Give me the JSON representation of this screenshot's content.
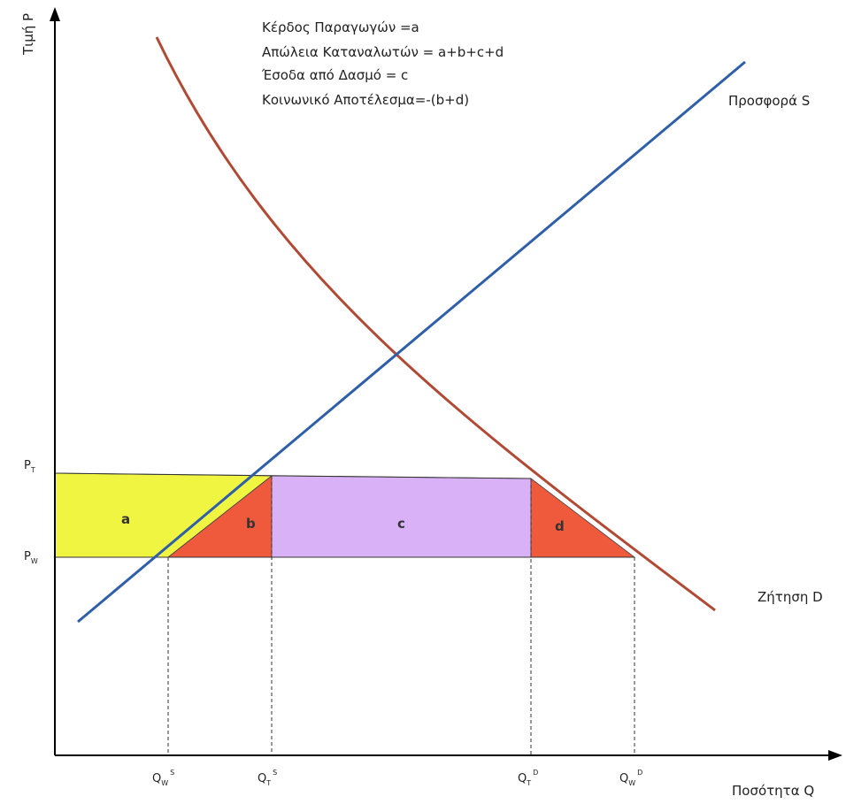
{
  "annotations": [
    "Κέρδος Παραγωγών =a",
    "Απώλεια Καταναλωτών = a+b+c+d",
    "Έσοδα από Δασμό = c",
    "Κοινωνικό Αποτέλεσμα=-(b+d)"
  ],
  "axes": {
    "y_label": "Τιμή P",
    "x_label": "Ποσότητα Q"
  },
  "curves": {
    "supply_label": "Προσφορά S",
    "demand_label": "Ζήτηση D",
    "supply_color": "#2f5fa8",
    "demand_color": "#b14a35"
  },
  "price_ticks": {
    "pt": {
      "main": "P",
      "sub": "T"
    },
    "pw": {
      "main": "P",
      "sub": "W"
    }
  },
  "quantity_ticks": {
    "qws": {
      "main": "Q",
      "sub": "W",
      "sup": "S"
    },
    "qts": {
      "main": "Q",
      "sub": "T",
      "sup": "S"
    },
    "qtd": {
      "main": "Q",
      "sub": "T",
      "sup": "D"
    },
    "qwd": {
      "main": "Q",
      "sub": "W",
      "sup": "D"
    }
  },
  "regions": {
    "a": {
      "label": "a",
      "color": "#f0f542"
    },
    "b": {
      "label": "b",
      "color": "#f05a3c"
    },
    "c": {
      "label": "c",
      "color": "#d9b1f7"
    },
    "d": {
      "label": "d",
      "color": "#f05a3c"
    }
  }
}
